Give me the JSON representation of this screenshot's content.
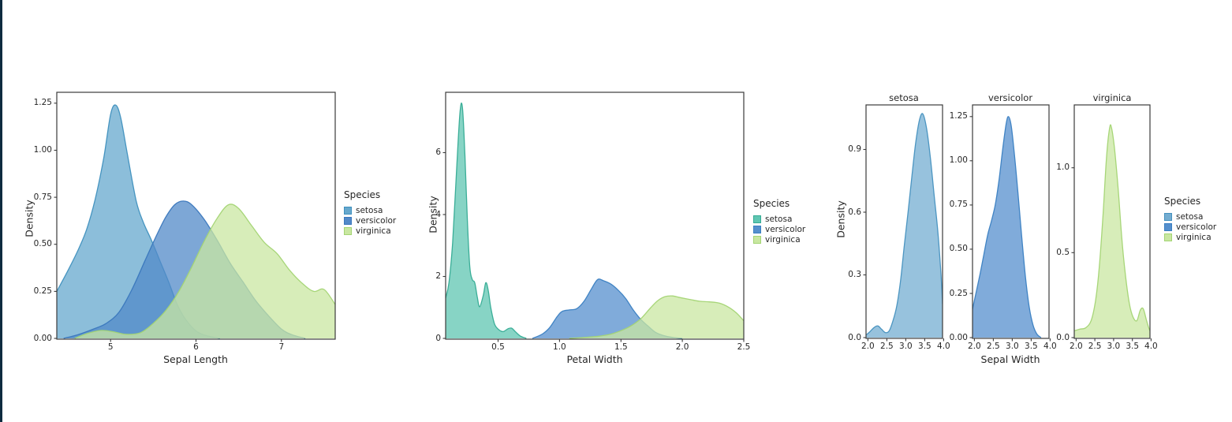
{
  "figure": {
    "background": "#ffffff",
    "left_bar_color": "#0e2b3f",
    "spine_color": "#3b3b3b",
    "text_color": "#262626"
  },
  "chart_data": [
    {
      "type": "kde",
      "xlabel": "Sepal Length",
      "ylabel": "Density",
      "xlim": [
        4.37,
        7.63
      ],
      "ylim": [
        0,
        1.31
      ],
      "grid": false,
      "legend_position": "right",
      "xtick_labels": [
        "5",
        "6",
        "7"
      ],
      "xtick_values": [
        5,
        6,
        7
      ],
      "ytick_labels": [
        "0.00",
        "0.25",
        "0.50",
        "0.75",
        "1.00",
        "1.25"
      ],
      "ytick_values": [
        0,
        0.25,
        0.5,
        0.75,
        1.0,
        1.25
      ],
      "legend": {
        "title": "Species",
        "items": [
          "setosa",
          "versicolor",
          "virginica"
        ]
      },
      "palette": {
        "setosa": "#66a8cd",
        "versicolor": "#5289c8",
        "virginica": "#c9e7a1"
      },
      "series": [
        {
          "name": "setosa",
          "points": [
            [
              4.37,
              0.25
            ],
            [
              4.5,
              0.36
            ],
            [
              4.62,
              0.47
            ],
            [
              4.72,
              0.58
            ],
            [
              4.82,
              0.74
            ],
            [
              4.92,
              0.96
            ],
            [
              5.0,
              1.19
            ],
            [
              5.06,
              1.24
            ],
            [
              5.12,
              1.17
            ],
            [
              5.2,
              0.97
            ],
            [
              5.3,
              0.73
            ],
            [
              5.38,
              0.62
            ],
            [
              5.48,
              0.52
            ],
            [
              5.58,
              0.41
            ],
            [
              5.68,
              0.3
            ],
            [
              5.78,
              0.18
            ],
            [
              5.88,
              0.1
            ],
            [
              6.0,
              0.04
            ],
            [
              6.12,
              0.015
            ],
            [
              6.28,
              0
            ]
          ]
        },
        {
          "name": "versicolor",
          "points": [
            [
              4.45,
              0
            ],
            [
              4.62,
              0.02
            ],
            [
              4.8,
              0.05
            ],
            [
              4.95,
              0.08
            ],
            [
              5.1,
              0.14
            ],
            [
              5.25,
              0.26
            ],
            [
              5.4,
              0.41
            ],
            [
              5.52,
              0.53
            ],
            [
              5.64,
              0.64
            ],
            [
              5.75,
              0.71
            ],
            [
              5.85,
              0.73
            ],
            [
              5.95,
              0.71
            ],
            [
              6.1,
              0.63
            ],
            [
              6.25,
              0.52
            ],
            [
              6.4,
              0.4
            ],
            [
              6.55,
              0.3
            ],
            [
              6.7,
              0.2
            ],
            [
              6.85,
              0.12
            ],
            [
              7.0,
              0.05
            ],
            [
              7.12,
              0.02
            ],
            [
              7.28,
              0
            ]
          ]
        },
        {
          "name": "virginica",
          "points": [
            [
              4.58,
              0
            ],
            [
              4.72,
              0.025
            ],
            [
              4.88,
              0.042
            ],
            [
              5.02,
              0.036
            ],
            [
              5.18,
              0.022
            ],
            [
              5.35,
              0.03
            ],
            [
              5.5,
              0.08
            ],
            [
              5.65,
              0.15
            ],
            [
              5.8,
              0.25
            ],
            [
              5.95,
              0.38
            ],
            [
              6.1,
              0.52
            ],
            [
              6.25,
              0.64
            ],
            [
              6.38,
              0.71
            ],
            [
              6.5,
              0.69
            ],
            [
              6.65,
              0.6
            ],
            [
              6.8,
              0.51
            ],
            [
              6.95,
              0.45
            ],
            [
              7.1,
              0.36
            ],
            [
              7.25,
              0.29
            ],
            [
              7.38,
              0.25
            ],
            [
              7.5,
              0.26
            ],
            [
              7.63,
              0.18
            ]
          ]
        }
      ]
    },
    {
      "type": "kde",
      "xlabel": "Petal Width",
      "ylabel": "Density",
      "xlim": [
        0.07,
        2.5
      ],
      "ylim": [
        0,
        7.95
      ],
      "grid": false,
      "legend_position": "right",
      "xtick_labels": [
        "0.5",
        "1.0",
        "1.5",
        "2.0",
        "2.5"
      ],
      "xtick_values": [
        0.5,
        1.0,
        1.5,
        2.0,
        2.5
      ],
      "ytick_labels": [
        "0",
        "2",
        "4",
        "6"
      ],
      "ytick_values": [
        0,
        2,
        4,
        6
      ],
      "legend": {
        "title": "Species",
        "items": [
          "setosa",
          "versicolor",
          "virginica"
        ]
      },
      "palette": {
        "setosa": "#5fc6b2",
        "versicolor": "#558fcd",
        "virginica": "#c9e7a1"
      },
      "series": [
        {
          "name": "setosa",
          "points": [
            [
              0.073,
              1.3
            ],
            [
              0.1,
              1.8
            ],
            [
              0.13,
              3.1
            ],
            [
              0.16,
              5.3
            ],
            [
              0.19,
              7.3
            ],
            [
              0.21,
              7.45
            ],
            [
              0.23,
              5.9
            ],
            [
              0.25,
              3.8
            ],
            [
              0.27,
              2.3
            ],
            [
              0.29,
              1.9
            ],
            [
              0.31,
              1.8
            ],
            [
              0.33,
              1.35
            ],
            [
              0.35,
              1.02
            ],
            [
              0.38,
              1.4
            ],
            [
              0.4,
              1.8
            ],
            [
              0.42,
              1.55
            ],
            [
              0.44,
              1.0
            ],
            [
              0.47,
              0.48
            ],
            [
              0.5,
              0.3
            ],
            [
              0.54,
              0.22
            ],
            [
              0.58,
              0.31
            ],
            [
              0.61,
              0.33
            ],
            [
              0.64,
              0.22
            ],
            [
              0.68,
              0.08
            ],
            [
              0.73,
              0
            ]
          ]
        },
        {
          "name": "versicolor",
          "points": [
            [
              0.78,
              0
            ],
            [
              0.86,
              0.14
            ],
            [
              0.92,
              0.35
            ],
            [
              0.98,
              0.7
            ],
            [
              1.02,
              0.87
            ],
            [
              1.08,
              0.92
            ],
            [
              1.14,
              0.96
            ],
            [
              1.2,
              1.2
            ],
            [
              1.26,
              1.6
            ],
            [
              1.31,
              1.9
            ],
            [
              1.36,
              1.86
            ],
            [
              1.42,
              1.75
            ],
            [
              1.48,
              1.55
            ],
            [
              1.54,
              1.28
            ],
            [
              1.6,
              0.92
            ],
            [
              1.66,
              0.62
            ],
            [
              1.72,
              0.4
            ],
            [
              1.78,
              0.2
            ],
            [
              1.84,
              0.1
            ],
            [
              1.92,
              0.03
            ],
            [
              2.0,
              0
            ]
          ]
        },
        {
          "name": "virginica",
          "points": [
            [
              1.08,
              0
            ],
            [
              1.2,
              0.03
            ],
            [
              1.32,
              0.07
            ],
            [
              1.42,
              0.14
            ],
            [
              1.5,
              0.25
            ],
            [
              1.58,
              0.4
            ],
            [
              1.66,
              0.63
            ],
            [
              1.74,
              0.98
            ],
            [
              1.8,
              1.22
            ],
            [
              1.86,
              1.35
            ],
            [
              1.92,
              1.37
            ],
            [
              1.98,
              1.32
            ],
            [
              2.06,
              1.26
            ],
            [
              2.14,
              1.2
            ],
            [
              2.22,
              1.18
            ],
            [
              2.3,
              1.14
            ],
            [
              2.38,
              1.0
            ],
            [
              2.44,
              0.82
            ],
            [
              2.5,
              0.57
            ]
          ]
        }
      ]
    },
    {
      "type": "kde",
      "xlabel": "Sepal Width",
      "ylabel": "Density",
      "xlim": [
        1.95,
        3.97
      ],
      "grid": false,
      "legend_position": "right",
      "xtick_labels": [
        "2.0",
        "2.5",
        "3.0",
        "3.5",
        "4.0"
      ],
      "xtick_values": [
        2.0,
        2.5,
        3.0,
        3.5,
        4.0
      ],
      "legend": {
        "title": "Species",
        "items": [
          "setosa",
          "versicolor",
          "virginica"
        ]
      },
      "palette": {
        "setosa": "#74add1",
        "versicolor": "#558fcd",
        "virginica": "#c9e7a1"
      },
      "facets": [
        {
          "title": "setosa",
          "ytick_labels": [
            "0.0",
            "0.3",
            "0.6",
            "0.9"
          ],
          "ytick_values": [
            0,
            0.3,
            0.6,
            0.9
          ],
          "ylim": [
            0,
            1.11
          ],
          "series": {
            "name": "setosa",
            "points": [
              [
                1.95,
                0.012
              ],
              [
                2.05,
                0.028
              ],
              [
                2.16,
                0.048
              ],
              [
                2.26,
                0.056
              ],
              [
                2.36,
                0.04
              ],
              [
                2.46,
                0.024
              ],
              [
                2.56,
                0.032
              ],
              [
                2.66,
                0.08
              ],
              [
                2.76,
                0.15
              ],
              [
                2.86,
                0.27
              ],
              [
                2.96,
                0.44
              ],
              [
                3.06,
                0.6
              ],
              [
                3.16,
                0.77
              ],
              [
                3.26,
                0.93
              ],
              [
                3.36,
                1.04
              ],
              [
                3.45,
                1.07
              ],
              [
                3.55,
                1.0
              ],
              [
                3.65,
                0.86
              ],
              [
                3.75,
                0.68
              ],
              [
                3.85,
                0.5
              ],
              [
                3.93,
                0.3
              ],
              [
                3.97,
                0.16
              ]
            ]
          }
        },
        {
          "title": "versicolor",
          "ytick_labels": [
            "0.00",
            "0.25",
            "0.50",
            "0.75",
            "1.00",
            "1.25"
          ],
          "ytick_values": [
            0,
            0.25,
            0.5,
            0.75,
            1.0,
            1.25
          ],
          "ylim": [
            0,
            1.32
          ],
          "series": {
            "name": "versicolor",
            "points": [
              [
                1.95,
                0.16
              ],
              [
                2.05,
                0.26
              ],
              [
                2.15,
                0.36
              ],
              [
                2.25,
                0.47
              ],
              [
                2.35,
                0.58
              ],
              [
                2.45,
                0.66
              ],
              [
                2.55,
                0.75
              ],
              [
                2.65,
                0.89
              ],
              [
                2.75,
                1.07
              ],
              [
                2.84,
                1.21
              ],
              [
                2.9,
                1.25
              ],
              [
                2.97,
                1.2
              ],
              [
                3.05,
                1.05
              ],
              [
                3.15,
                0.82
              ],
              [
                3.25,
                0.57
              ],
              [
                3.35,
                0.34
              ],
              [
                3.45,
                0.17
              ],
              [
                3.55,
                0.07
              ],
              [
                3.65,
                0.02
              ],
              [
                3.76,
                0
              ]
            ]
          }
        },
        {
          "title": "virginica",
          "ytick_labels": [
            "0.0",
            "0.5",
            "1.0"
          ],
          "ytick_values": [
            0,
            0.5,
            1.0
          ],
          "ylim": [
            0,
            1.37
          ],
          "series": {
            "name": "virginica",
            "points": [
              [
                1.95,
                0.04
              ],
              [
                2.1,
                0.05
              ],
              [
                2.25,
                0.057
              ],
              [
                2.4,
                0.1
              ],
              [
                2.52,
                0.22
              ],
              [
                2.62,
                0.42
              ],
              [
                2.72,
                0.73
              ],
              [
                2.81,
                1.06
              ],
              [
                2.89,
                1.23
              ],
              [
                2.94,
                1.24
              ],
              [
                3.02,
                1.12
              ],
              [
                3.12,
                0.88
              ],
              [
                3.22,
                0.58
              ],
              [
                3.32,
                0.36
              ],
              [
                3.42,
                0.2
              ],
              [
                3.52,
                0.12
              ],
              [
                3.62,
                0.1
              ],
              [
                3.71,
                0.16
              ],
              [
                3.79,
                0.17
              ],
              [
                3.88,
                0.1
              ],
              [
                3.97,
                0.04
              ],
              [
                4.08,
                0.01
              ],
              [
                4.15,
                0
              ]
            ]
          }
        }
      ]
    }
  ]
}
